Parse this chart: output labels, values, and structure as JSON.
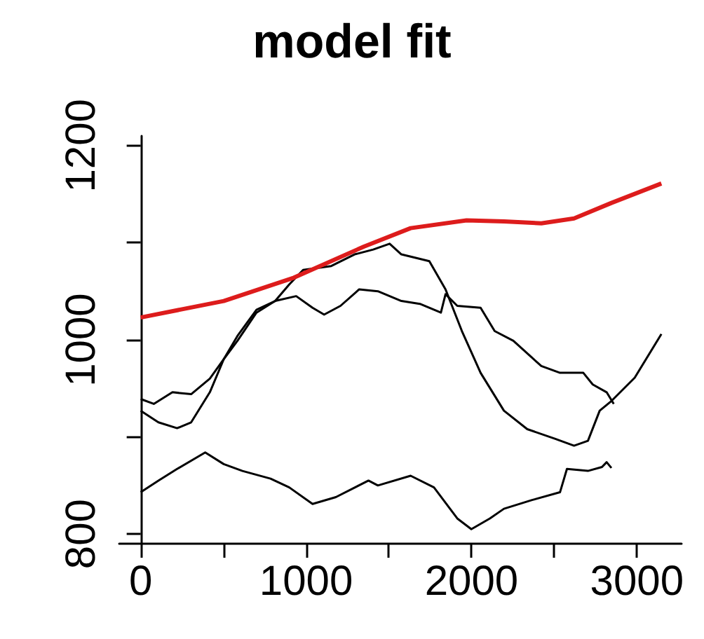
{
  "chart_data": {
    "type": "line",
    "title": "model fit",
    "grid": false,
    "marker": "none",
    "line_style": "solid",
    "xlim": [
      -130,
      3270
    ],
    "xticks": [
      0,
      {
        "value": 500,
        "label": null
      },
      1000,
      {
        "value": 1500,
        "label": null
      },
      2000,
      {
        "value": 2500,
        "label": null
      },
      3000
    ],
    "ylim": [
      790,
      1210
    ],
    "yticks": [
      800,
      {
        "value": 900,
        "label": null
      },
      1000,
      {
        "value": 1100,
        "label": null
      },
      1200
    ],
    "series": [
      {
        "color": "#000000",
        "x": [
          0,
          79,
          192,
          305,
          418,
          502,
          585,
          700,
          813,
          898,
          982,
          1152,
          1293,
          1406,
          1505,
          1576,
          1745,
          1843,
          1942,
          2055,
          2196,
          2337,
          2507,
          2620,
          2704,
          2775,
          2846,
          2987,
          3148
        ],
        "values": [
          939,
          934,
          946,
          944,
          960,
          980,
          999,
          1028,
          1040,
          1057,
          1072,
          1076,
          1088,
          1093,
          1099,
          1088,
          1081,
          1052,
          1009,
          966,
          927,
          908,
          898,
          891,
          896,
          927,
          937,
          961,
          1006
        ]
      },
      {
        "color": "#000000",
        "x": [
          0,
          107,
          220,
          305,
          418,
          502,
          585,
          700,
          813,
          940,
          1039,
          1109,
          1208,
          1321,
          1434,
          1576,
          1688,
          1815,
          1843,
          1914,
          2055,
          2140,
          2253,
          2422,
          2535,
          2676,
          2733,
          2817,
          2860
        ],
        "values": [
          927,
          915,
          909,
          915,
          946,
          980,
          1004,
          1031,
          1040,
          1045,
          1033,
          1026,
          1035,
          1052,
          1050,
          1040,
          1037,
          1028,
          1047,
          1035,
          1033,
          1009,
          999,
          973,
          966,
          966,
          954,
          946,
          934
        ]
      },
      {
        "color": "#000000",
        "x": [
          0,
          107,
          220,
          390,
          502,
          615,
          785,
          898,
          1039,
          1180,
          1377,
          1434,
          1632,
          1773,
          1914,
          1999,
          2111,
          2196,
          2366,
          2535,
          2577,
          2704,
          2789,
          2817,
          2846
        ],
        "values": [
          843,
          855,
          867,
          884,
          872,
          865,
          857,
          848,
          831,
          838,
          855,
          850,
          860,
          848,
          816,
          805,
          816,
          826,
          835,
          843,
          867,
          865,
          869,
          874,
          868
        ]
      },
      {
        "color": "#dd1c1c",
        "x": [
          0,
          502,
          926,
          1349,
          1632,
          1970,
          2196,
          2422,
          2620,
          2846,
          3148
        ],
        "values": [
          1023,
          1040,
          1064,
          1096,
          1115,
          1123,
          1122,
          1120,
          1125,
          1141,
          1161
        ]
      }
    ]
  }
}
